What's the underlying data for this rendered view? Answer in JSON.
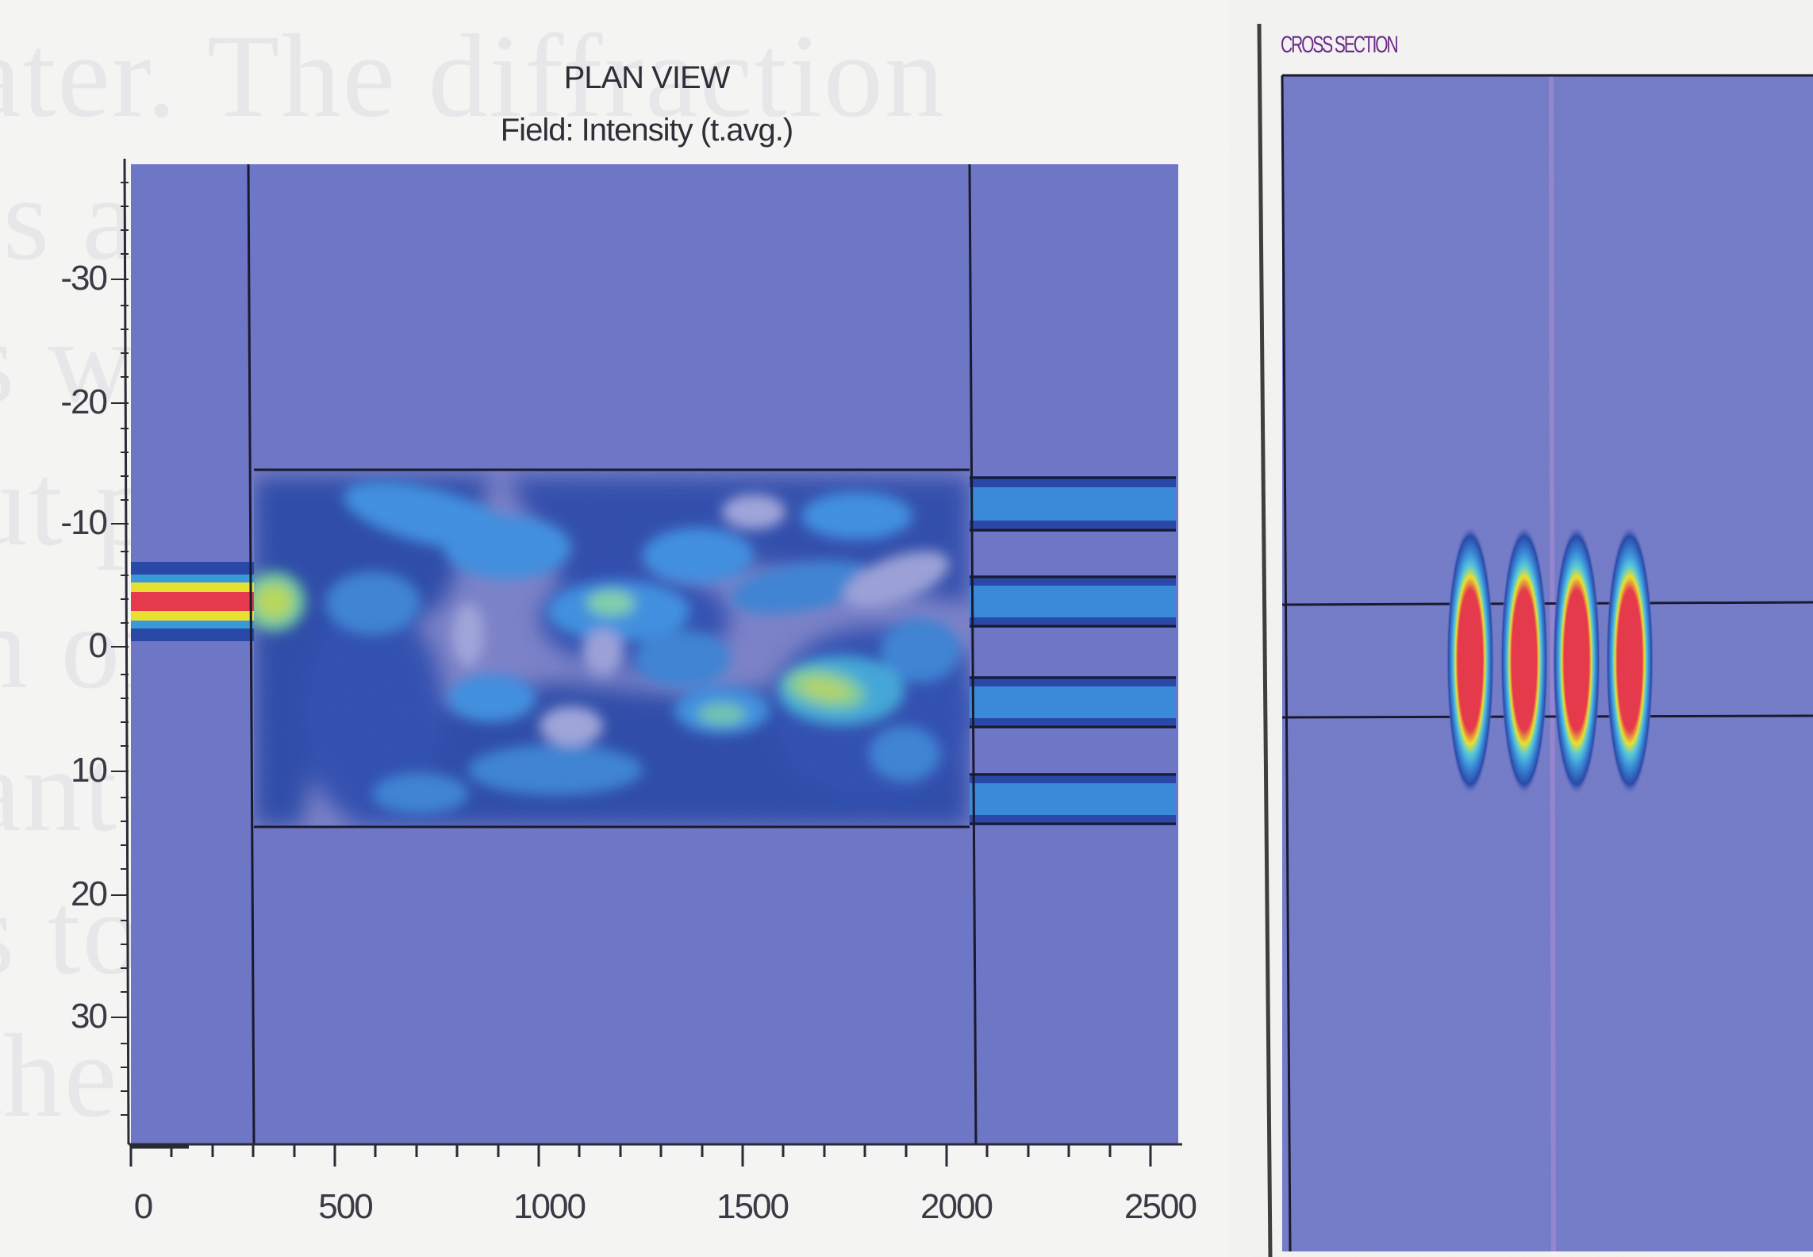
{
  "plan_view": {
    "title": "PLAN VIEW",
    "subtitle": "Field: Intensity (t.avg.)",
    "y_ticks": [
      "-30",
      "-20",
      "-10",
      "0",
      "10",
      "20",
      "30"
    ],
    "x_ticks": [
      "0",
      "500",
      "1000",
      "1500",
      "2000",
      "2500"
    ]
  },
  "cross_section": {
    "title": "CROSS SECTION",
    "peak_count": 4
  },
  "colors": {
    "background_field": "#6e76c6",
    "low_intensity": "#2848a8",
    "mid_intensity": "#3a8ad8",
    "high_intensity": "#e8e830",
    "peak_intensity": "#e8384a",
    "outline": "#1a1a2e"
  }
}
